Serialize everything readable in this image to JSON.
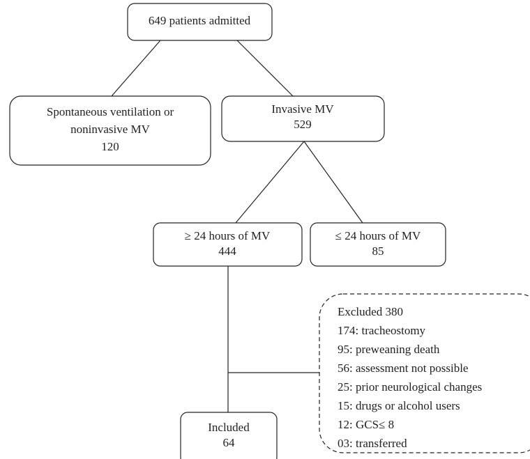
{
  "nodes": [
    {
      "lines": [
        "649 patients admitted"
      ]
    },
    {
      "lines": [
        "Spontaneous ventilation or",
        "noninvasive MV",
        "120"
      ]
    },
    {
      "lines": [
        "Invasive MV",
        "529"
      ]
    },
    {
      "lines": [
        "≥ 24 hours of MV",
        "444"
      ]
    },
    {
      "lines": [
        "≤ 24 hours of MV",
        "85"
      ]
    },
    {
      "lines": [
        "Included",
        "64"
      ]
    },
    {
      "lines": [
        "Excluded  380",
        "174: tracheostomy",
        "95: preweaning death",
        "56: assessment not possible",
        "25: prior neurological changes",
        "15: drugs or alcohol users",
        "12: GCS≤ 8",
        "03: transferred"
      ]
    }
  ]
}
